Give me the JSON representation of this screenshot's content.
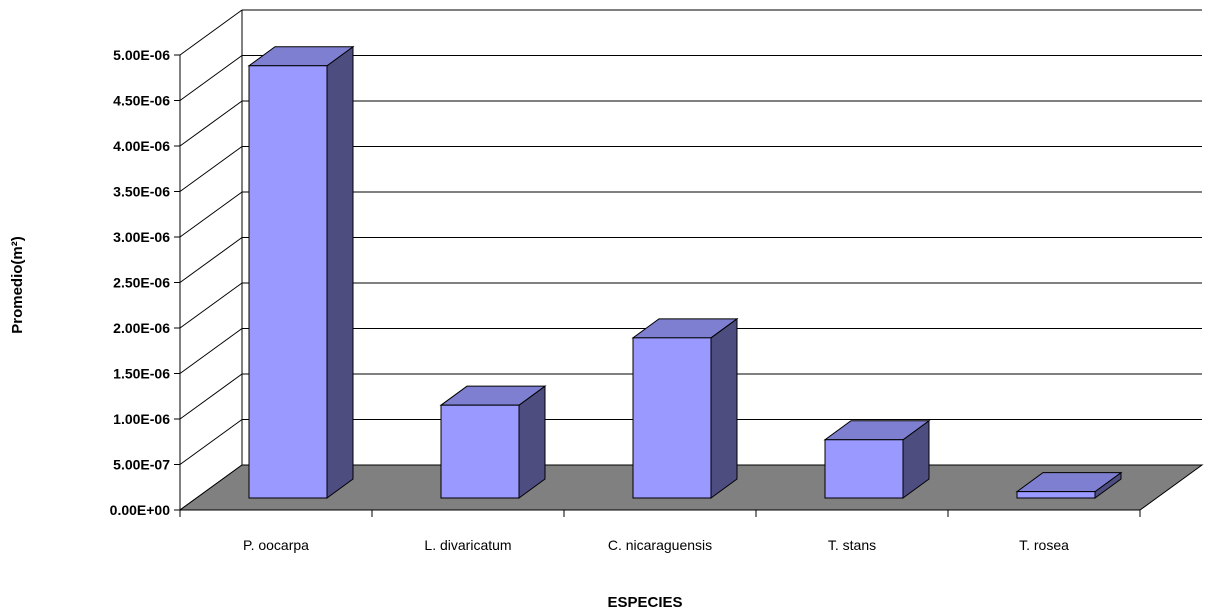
{
  "chart_data": {
    "type": "bar",
    "style": "3d-column",
    "xlabel": "ESPECIES",
    "ylabel": "Promedio(m²)",
    "categories": [
      "P. oocarpa",
      "L. divaricatum",
      "C. nicaraguensis",
      "T. stans",
      "T. rosea"
    ],
    "values": [
      4.75e-06,
      1.02e-06,
      1.76e-06,
      6.4e-07,
      7e-08
    ],
    "ylim": [
      0,
      5e-06
    ],
    "yticks": [
      0,
      5e-07,
      1e-06,
      1.5e-06,
      2e-06,
      2.5e-06,
      3e-06,
      3.5e-06,
      4e-06,
      4.5e-06,
      5e-06
    ],
    "ytick_labels": [
      "0.00E+00",
      "5.00E-07",
      "1.00E-06",
      "1.50E-06",
      "2.00E-06",
      "2.50E-06",
      "3.00E-06",
      "3.50E-06",
      "4.00E-06",
      "4.50E-06",
      "5.00E-06"
    ],
    "grid": true,
    "legend": "none",
    "colors": {
      "bar_front": "#9999ff",
      "bar_top": "#7f7fd1",
      "bar_side": "#4d4d80",
      "floor": "#808080",
      "grid": "#000000"
    }
  }
}
